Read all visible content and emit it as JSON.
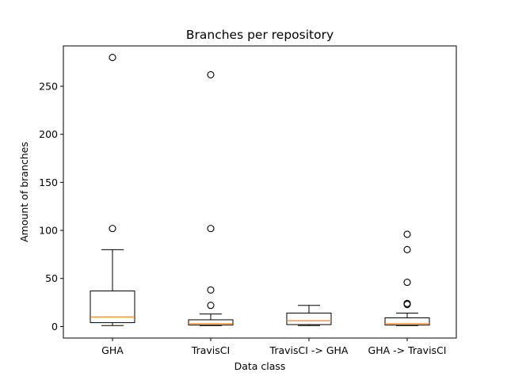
{
  "chart_data": {
    "type": "box",
    "title": "Branches per repository",
    "xlabel": "Data class",
    "ylabel": "Amount of branches",
    "ylim": [
      -12,
      292
    ],
    "yticks": [
      0,
      50,
      100,
      150,
      200,
      250
    ],
    "grid": false,
    "colors": {
      "box": "#000000",
      "median": "#ff7f0e",
      "background": "#ffffff"
    },
    "categories": [
      "GHA",
      "TravisCI",
      "TravisCI -> GHA",
      "GHA -> TravisCI"
    ],
    "boxes": [
      {
        "name": "GHA",
        "whisker_low": 1,
        "q1": 4,
        "median": 10,
        "q3": 37,
        "whisker_high": 80,
        "outliers": [
          102,
          280
        ]
      },
      {
        "name": "TravisCI",
        "whisker_low": 1,
        "q1": 1.5,
        "median": 3,
        "q3": 7,
        "whisker_high": 13,
        "outliers": [
          22,
          38,
          102,
          262
        ]
      },
      {
        "name": "TravisCI -> GHA",
        "whisker_low": 1,
        "q1": 2,
        "median": 6,
        "q3": 14,
        "whisker_high": 22,
        "outliers": []
      },
      {
        "name": "GHA -> TravisCI",
        "whisker_low": 1,
        "q1": 1.5,
        "median": 3,
        "q3": 9,
        "whisker_high": 14,
        "outliers": [
          23,
          24,
          46,
          80,
          96
        ]
      }
    ]
  }
}
